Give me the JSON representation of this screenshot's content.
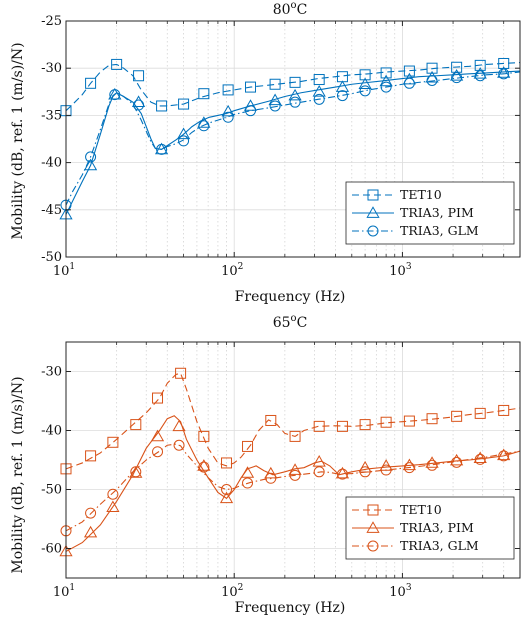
{
  "chart_data": [
    {
      "type": "line",
      "title": "80",
      "title_sup": "o",
      "title_unit": "C",
      "xlabel": "Frequency (Hz)",
      "ylabel": "Mobility (dB, ref. 1 (m/s)/N)",
      "xscale": "log",
      "xlim": [
        10,
        5000
      ],
      "ylim": [
        -50,
        -25
      ],
      "yticks": [
        -50,
        -45,
        -40,
        -35,
        -30,
        -25
      ],
      "xticks": [
        10,
        100,
        1000
      ],
      "xtick_labels": [
        "10",
        "10",
        "10"
      ],
      "xtick_sups": [
        "1",
        "2",
        "3"
      ],
      "grid": true,
      "legend_position": "bottom-right",
      "color": "#0072BD",
      "series": [
        {
          "name": "TET10",
          "linestyle": "dashed",
          "marker": "square",
          "x": [
            10,
            11,
            12.5,
            14,
            16,
            18,
            20,
            22,
            25,
            28,
            32,
            36,
            40,
            50,
            63,
            80,
            100,
            125,
            160,
            200,
            250,
            315,
            400,
            500,
            630,
            800,
            1000,
            1250,
            1600,
            2000,
            2500,
            3150,
            4000,
            5000
          ],
          "y": [
            -34.5,
            -33.8,
            -32.8,
            -31.6,
            -30.4,
            -29.7,
            -29.6,
            -30.0,
            -30.8,
            -32.3,
            -33.6,
            -34.0,
            -34.0,
            -33.8,
            -33.1,
            -32.6,
            -32.3,
            -32.0,
            -31.8,
            -31.6,
            -31.4,
            -31.1,
            -30.9,
            -30.7,
            -30.6,
            -30.4,
            -30.3,
            -30.2,
            -30.0,
            -29.9,
            -29.8,
            -29.6,
            -29.5,
            -29.4
          ],
          "marker_x": [
            10,
            14,
            20,
            27,
            37,
            50,
            66,
            92,
            125,
            175,
            230,
            320,
            440,
            600,
            800,
            1100,
            1500,
            2100,
            2900,
            4000
          ],
          "marker_y": [
            -34.5,
            -31.6,
            -29.6,
            -30.8,
            -34.0,
            -33.8,
            -32.7,
            -32.3,
            -32.0,
            -31.7,
            -31.5,
            -31.2,
            -30.9,
            -30.7,
            -30.5,
            -30.3,
            -30.0,
            -29.9,
            -29.7,
            -29.5
          ]
        },
        {
          "name": "TRIA3, PIM",
          "linestyle": "solid",
          "marker": "triangle",
          "x": [
            10,
            11,
            12.5,
            14,
            16,
            18,
            19,
            20,
            22,
            25,
            28,
            32,
            34,
            37,
            40,
            45,
            50,
            56,
            63,
            71,
            80,
            90,
            100,
            125,
            160,
            200,
            250,
            315,
            400,
            500,
            630,
            800,
            1000,
            1250,
            1600,
            2000,
            2500,
            3150,
            4000,
            5000
          ],
          "y": [
            -45.5,
            -44.0,
            -42.0,
            -40.3,
            -37.0,
            -34.0,
            -33.0,
            -32.6,
            -33.0,
            -33.6,
            -34.8,
            -37.5,
            -38.5,
            -38.6,
            -38.2,
            -37.6,
            -37.0,
            -36.2,
            -35.6,
            -35.2,
            -35.0,
            -34.8,
            -34.5,
            -34.0,
            -33.5,
            -33.0,
            -32.6,
            -32.3,
            -32.0,
            -31.7,
            -31.5,
            -31.3,
            -31.1,
            -30.9,
            -30.8,
            -30.7,
            -30.6,
            -30.5,
            -30.4,
            -30.3
          ],
          "marker_x": [
            10,
            14,
            19.5,
            27,
            37,
            50,
            66,
            92,
            125,
            175,
            230,
            320,
            440,
            600,
            800,
            1100,
            1500,
            2100,
            2900,
            4000
          ],
          "marker_y": [
            -45.5,
            -40.3,
            -32.8,
            -33.6,
            -38.6,
            -37.0,
            -35.8,
            -34.6,
            -34.0,
            -33.4,
            -32.9,
            -32.5,
            -32.0,
            -31.7,
            -31.4,
            -31.2,
            -31.0,
            -30.8,
            -30.6,
            -30.5
          ]
        },
        {
          "name": "TRIA3, GLM",
          "linestyle": "dashdot",
          "marker": "circle",
          "x": [
            10,
            11,
            12.5,
            14,
            16,
            18,
            19,
            20,
            22,
            25,
            28,
            32,
            34,
            37,
            40,
            45,
            50,
            56,
            63,
            71,
            80,
            90,
            100,
            125,
            160,
            200,
            250,
            315,
            400,
            500,
            630,
            800,
            1000,
            1250,
            1600,
            2000,
            2500,
            3150,
            4000,
            5000
          ],
          "y": [
            -44.5,
            -43.0,
            -41.3,
            -39.4,
            -36.5,
            -33.8,
            -32.9,
            -32.6,
            -33.0,
            -33.8,
            -35.5,
            -37.8,
            -38.5,
            -38.6,
            -38.3,
            -38.0,
            -37.6,
            -36.8,
            -36.2,
            -35.8,
            -35.5,
            -35.2,
            -34.9,
            -34.5,
            -34.2,
            -33.9,
            -33.6,
            -33.3,
            -33.0,
            -32.7,
            -32.3,
            -32.0,
            -31.7,
            -31.5,
            -31.3,
            -31.1,
            -30.9,
            -30.7,
            -30.6,
            -30.4
          ],
          "marker_x": [
            10,
            14,
            19.5,
            27,
            37,
            50,
            66,
            92,
            125,
            175,
            230,
            320,
            440,
            600,
            800,
            1100,
            1500,
            2100,
            2900,
            4000
          ],
          "marker_y": [
            -44.5,
            -39.4,
            -32.8,
            -33.9,
            -38.6,
            -37.7,
            -36.1,
            -35.2,
            -34.5,
            -34.0,
            -33.6,
            -33.3,
            -32.9,
            -32.4,
            -32.0,
            -31.6,
            -31.3,
            -31.0,
            -30.8,
            -30.6
          ]
        }
      ]
    },
    {
      "type": "line",
      "title": "65",
      "title_sup": "o",
      "title_unit": "C",
      "xlabel": "Frequency (Hz)",
      "ylabel": "Mobility (dB, ref. 1 (m/s)/N)",
      "xscale": "log",
      "xlim": [
        10,
        5000
      ],
      "ylim": [
        -65,
        -25
      ],
      "yticks": [
        -60,
        -50,
        -40,
        -30
      ],
      "xticks": [
        10,
        100,
        1000
      ],
      "xtick_labels": [
        "10",
        "10",
        "10"
      ],
      "xtick_sups": [
        "1",
        "2",
        "3"
      ],
      "grid": true,
      "legend_position": "bottom-right",
      "color": "#D95319",
      "series": [
        {
          "name": "TET10",
          "linestyle": "dashed",
          "marker": "square",
          "x": [
            10,
            12.5,
            16,
            20,
            25,
            30,
            36,
            40,
            45,
            48,
            52,
            60,
            70,
            80,
            90,
            100,
            110,
            125,
            140,
            160,
            180,
            200,
            230,
            260,
            315,
            400,
            500,
            630,
            800,
            1000,
            1250,
            1600,
            2000,
            2500,
            3150,
            4000,
            5000
          ],
          "y": [
            -46.5,
            -45.5,
            -43.8,
            -41.5,
            -39.0,
            -37.0,
            -34.5,
            -32.0,
            -30.5,
            -30.3,
            -33.0,
            -38.5,
            -43.0,
            -45.5,
            -46.0,
            -45.5,
            -44.5,
            -42.5,
            -40.0,
            -38.2,
            -39.0,
            -40.5,
            -41.0,
            -40.0,
            -39.3,
            -39.2,
            -39.3,
            -39.1,
            -38.7,
            -38.5,
            -38.3,
            -38.0,
            -37.7,
            -37.3,
            -37.0,
            -36.6,
            -36.2
          ],
          "marker_x": [
            10,
            14,
            19,
            26,
            35,
            48,
            66,
            90,
            120,
            165,
            230,
            320,
            440,
            600,
            800,
            1100,
            1500,
            2100,
            2900,
            4000
          ],
          "marker_y": [
            -46.5,
            -44.3,
            -42.0,
            -39.0,
            -34.5,
            -30.3,
            -41.0,
            -45.5,
            -42.7,
            -38.3,
            -41.0,
            -39.3,
            -39.3,
            -39.0,
            -38.6,
            -38.4,
            -38.0,
            -37.6,
            -37.1,
            -36.6
          ]
        },
        {
          "name": "TRIA3, PIM",
          "linestyle": "solid",
          "marker": "triangle",
          "x": [
            10,
            12.5,
            16,
            20,
            25,
            30,
            36,
            40,
            44,
            48,
            52,
            60,
            70,
            80,
            90,
            100,
            110,
            120,
            135,
            150,
            170,
            200,
            230,
            260,
            300,
            330,
            370,
            420,
            500,
            630,
            800,
            1000,
            1250,
            1600,
            2000,
            2500,
            3150,
            4000,
            5000
          ],
          "y": [
            -60.5,
            -59.0,
            -56.0,
            -52.0,
            -47.5,
            -43.0,
            -40.0,
            -38.0,
            -37.5,
            -38.5,
            -41.5,
            -45.0,
            -48.0,
            -50.5,
            -51.5,
            -50.0,
            -48.0,
            -46.5,
            -46.0,
            -46.8,
            -47.5,
            -47.0,
            -46.5,
            -46.3,
            -45.5,
            -45.2,
            -46.0,
            -47.5,
            -47.0,
            -46.5,
            -46.2,
            -46.0,
            -45.8,
            -45.5,
            -45.2,
            -45.0,
            -44.7,
            -44.3,
            -43.5
          ],
          "marker_x": [
            10,
            14,
            19,
            26,
            35,
            47,
            66,
            90,
            120,
            165,
            230,
            320,
            440,
            600,
            800,
            1100,
            1500,
            2100,
            2900,
            4000
          ],
          "marker_y": [
            -60.5,
            -57.3,
            -53.0,
            -47.2,
            -41.0,
            -39.3,
            -46.0,
            -51.5,
            -47.2,
            -47.3,
            -46.7,
            -45.3,
            -47.3,
            -46.3,
            -46.0,
            -45.9,
            -45.5,
            -45.1,
            -44.7,
            -44.2
          ]
        },
        {
          "name": "TRIA3, GLM",
          "linestyle": "dashdot",
          "marker": "circle",
          "x": [
            10,
            12.5,
            16,
            20,
            25,
            30,
            36,
            40,
            45,
            48,
            52,
            60,
            70,
            80,
            90,
            100,
            110,
            125,
            150,
            180,
            200,
            230,
            260,
            300,
            330,
            370,
            420,
            500,
            630,
            800,
            1000,
            1250,
            1600,
            2000,
            2500,
            3150,
            4000,
            5000
          ],
          "y": [
            -57.0,
            -55.5,
            -52.5,
            -50.0,
            -47.0,
            -45.0,
            -43.5,
            -42.5,
            -42.3,
            -42.6,
            -44.0,
            -46.0,
            -48.0,
            -49.5,
            -50.0,
            -49.8,
            -49.3,
            -48.8,
            -48.3,
            -48.0,
            -47.8,
            -47.6,
            -47.4,
            -47.2,
            -47.0,
            -47.1,
            -47.4,
            -47.3,
            -47.0,
            -46.7,
            -46.4,
            -46.1,
            -45.7,
            -45.3,
            -44.9,
            -44.5,
            -44.0,
            -43.5
          ],
          "marker_x": [
            10,
            14,
            19,
            26,
            35,
            47,
            66,
            90,
            120,
            165,
            230,
            320,
            440,
            600,
            800,
            1100,
            1500,
            2100,
            2900,
            4000
          ],
          "marker_y": [
            -57.0,
            -54.0,
            -50.8,
            -47.0,
            -43.6,
            -42.5,
            -46.2,
            -50.0,
            -48.9,
            -48.1,
            -47.6,
            -47.0,
            -47.4,
            -47.0,
            -46.7,
            -46.3,
            -45.9,
            -45.4,
            -44.9,
            -44.3
          ]
        }
      ]
    }
  ]
}
